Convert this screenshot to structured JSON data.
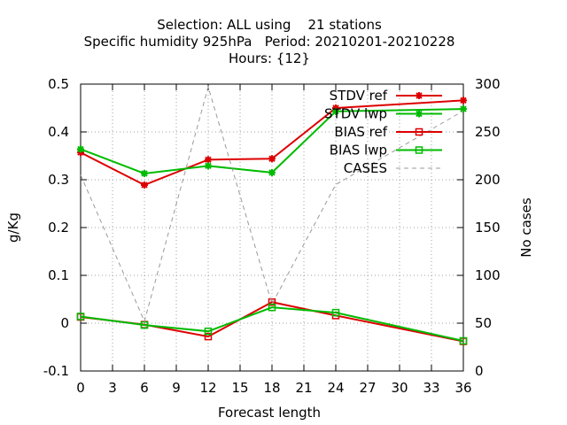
{
  "chart_data": {
    "type": "line",
    "title": [
      "Selection: ALL using    21 stations",
      "Specific humidity 925hPa   Period: 20210201-20210228",
      "Hours: {12}"
    ],
    "xlabel": "Forecast length",
    "ylabel": "g/Kg",
    "y2label": "No cases",
    "x": [
      0,
      6,
      12,
      18,
      24,
      36
    ],
    "xticks": [
      0,
      3,
      6,
      9,
      12,
      15,
      18,
      21,
      24,
      27,
      30,
      33,
      36
    ],
    "xlim": [
      0,
      36
    ],
    "ylim": [
      -0.1,
      0.5
    ],
    "yticks": [
      -0.1,
      0,
      0.1,
      0.2,
      0.3,
      0.4,
      0.5
    ],
    "ytick_labels": [
      "-0.1",
      "0",
      "0.1",
      "0.2",
      "0.3",
      "0.4",
      "0.5"
    ],
    "y2lim": [
      0,
      300
    ],
    "y2ticks": [
      0,
      50,
      100,
      150,
      200,
      250,
      300
    ],
    "grid": true,
    "legend_position": "top-right",
    "series": [
      {
        "name": "STDV ref",
        "axis": "y1",
        "color": "#dd0000",
        "marker": "star",
        "dash": false,
        "values": [
          0.357,
          0.289,
          0.342,
          0.344,
          0.45,
          0.466
        ]
      },
      {
        "name": "STDV lwp",
        "axis": "y1",
        "color": "#00bb00",
        "marker": "star",
        "dash": false,
        "values": [
          0.364,
          0.313,
          0.329,
          0.315,
          0.443,
          0.448
        ]
      },
      {
        "name": "BIAS ref",
        "axis": "y1",
        "color": "#dd0000",
        "marker": "square",
        "dash": false,
        "values": [
          0.013,
          -0.003,
          -0.028,
          0.044,
          0.016,
          -0.038
        ]
      },
      {
        "name": "BIAS lwp",
        "axis": "y1",
        "color": "#00bb00",
        "marker": "square",
        "dash": false,
        "values": [
          0.014,
          -0.004,
          -0.017,
          0.033,
          0.022,
          -0.037
        ]
      },
      {
        "name": "CASES",
        "axis": "y2",
        "color": "#999999",
        "marker": "none",
        "dash": true,
        "values": [
          205,
          52,
          297,
          70,
          195,
          272
        ]
      }
    ]
  }
}
